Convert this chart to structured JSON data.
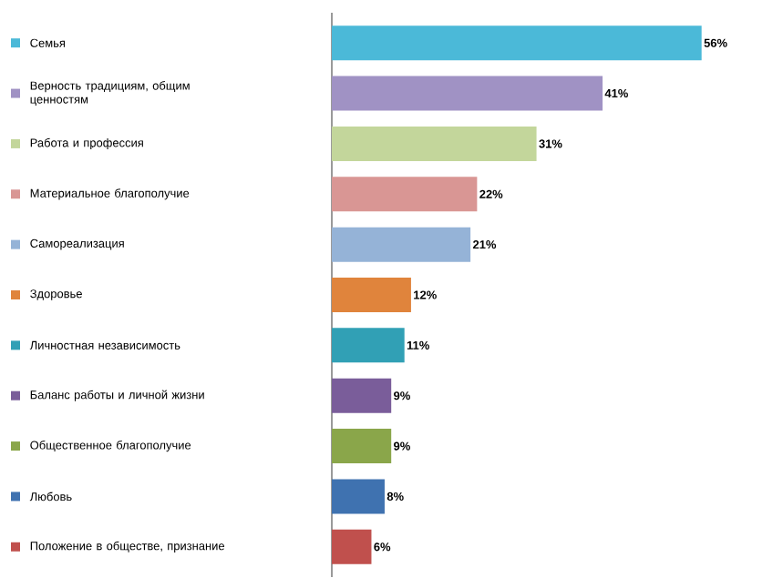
{
  "chart_data": {
    "type": "bar",
    "orientation": "horizontal",
    "categories": [
      "Семья",
      "Верность традициям, общим ценностям",
      "Работа и профессия",
      "Материальное благополучие",
      "Самореализация",
      "Здоровье",
      "Личностная независимость",
      "Баланс работы и личной жизни",
      "Общественное благополучие",
      "Любовь",
      "Положение в обществе, признание"
    ],
    "values": [
      56,
      41,
      31,
      22,
      21,
      12,
      11,
      9,
      9,
      8,
      6
    ],
    "value_labels": [
      "56%",
      "41%",
      "31%",
      "22%",
      "21%",
      "12%",
      "11%",
      "9%",
      "9%",
      "8%",
      "6%"
    ],
    "colors": [
      "#4bb9d8",
      "#a092c4",
      "#c3d69b",
      "#d99694",
      "#95b3d7",
      "#e0843c",
      "#31a0b5",
      "#7a5d9a",
      "#8aa64a",
      "#3f72b0",
      "#c0504d"
    ]
  }
}
